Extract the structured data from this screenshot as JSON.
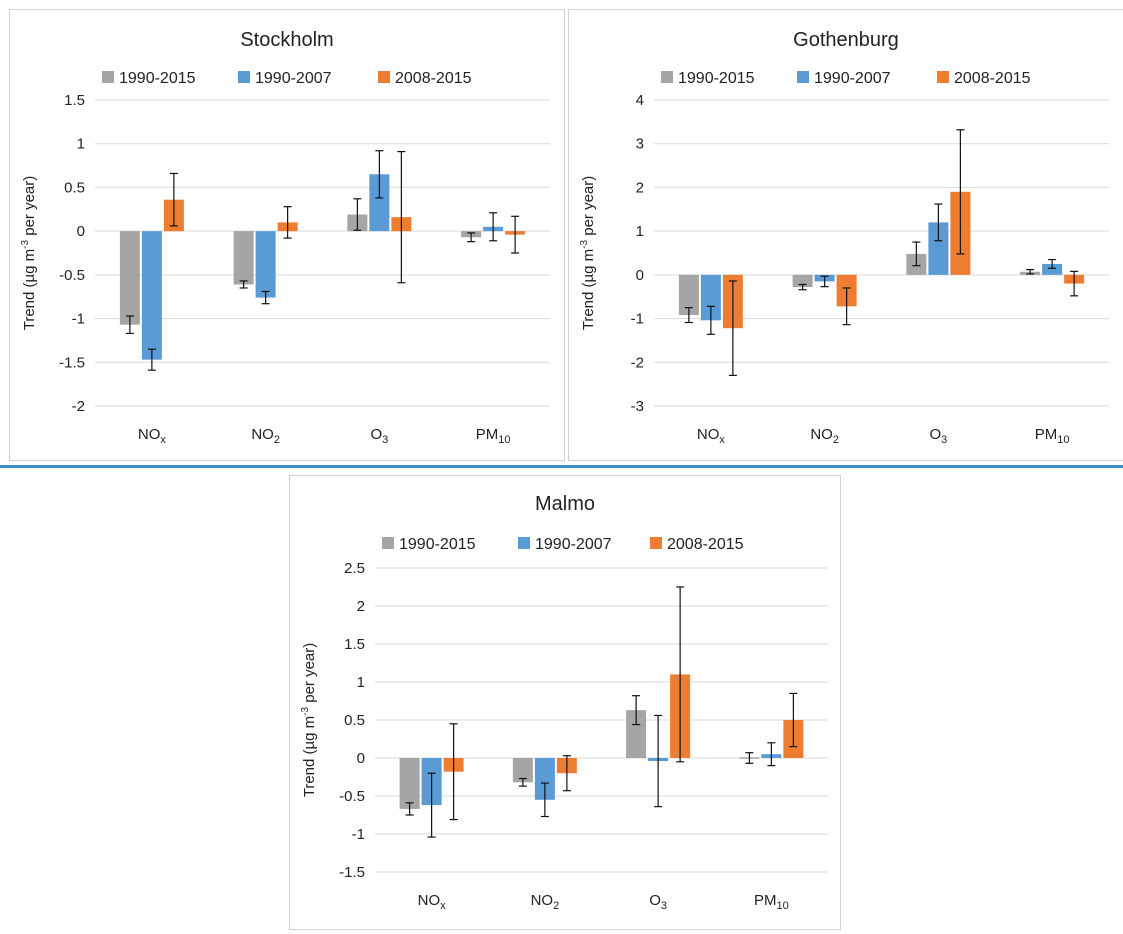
{
  "chart_data": [
    {
      "type": "bar",
      "title": "Stockholm",
      "ylabel_parts": [
        "Trend (µg m",
        "-3",
        " per year)"
      ],
      "categories": [
        [
          "NO",
          "x"
        ],
        [
          "NO",
          "2"
        ],
        [
          "O",
          "3"
        ],
        [
          "PM",
          "10"
        ]
      ],
      "series": [
        {
          "name": "1990-2015",
          "color": "#a5a5a5",
          "values": [
            -1.07,
            -0.61,
            0.19,
            -0.07
          ],
          "err": [
            0.1,
            0.04,
            0.18,
            0.05
          ]
        },
        {
          "name": "1990-2007",
          "color": "#5b9bd5",
          "values": [
            -1.47,
            -0.76,
            0.65,
            0.05
          ],
          "err": [
            0.12,
            0.07,
            0.27,
            0.16
          ]
        },
        {
          "name": "2008-2015",
          "color": "#ed7d31",
          "values": [
            0.36,
            0.1,
            0.16,
            -0.04
          ],
          "err": [
            0.3,
            0.18,
            0.75,
            0.21
          ]
        }
      ],
      "ylim": [
        -2,
        1.5
      ],
      "yticks": [
        1.5,
        1,
        0.5,
        0,
        -0.5,
        -1,
        -1.5,
        -2
      ],
      "yticklabels": [
        "1.5",
        "1",
        "0.5",
        "0",
        "-0.5",
        "-1",
        "-1.5",
        "-2"
      ],
      "grid": true,
      "legend_position": "top"
    },
    {
      "type": "bar",
      "title": "Gothenburg",
      "ylabel_parts": [
        "Trend (µg m",
        "-3",
        " per year)"
      ],
      "categories": [
        [
          "NO",
          "x"
        ],
        [
          "NO",
          "2"
        ],
        [
          "O",
          "3"
        ],
        [
          "PM",
          "10"
        ]
      ],
      "series": [
        {
          "name": "1990-2015",
          "color": "#a5a5a5",
          "values": [
            -0.92,
            -0.28,
            0.48,
            0.07
          ],
          "err": [
            0.17,
            0.06,
            0.27,
            0.05
          ]
        },
        {
          "name": "1990-2007",
          "color": "#5b9bd5",
          "values": [
            -1.04,
            -0.15,
            1.2,
            0.25
          ],
          "err": [
            0.32,
            0.12,
            0.42,
            0.1
          ]
        },
        {
          "name": "2008-2015",
          "color": "#ed7d31",
          "values": [
            -1.22,
            -0.72,
            1.9,
            -0.2
          ],
          "err": [
            1.08,
            0.42,
            1.42,
            0.28
          ]
        }
      ],
      "ylim": [
        -3,
        4
      ],
      "yticks": [
        4,
        3,
        2,
        1,
        0,
        -1,
        -2,
        -3
      ],
      "yticklabels": [
        "4",
        "3",
        "2",
        "1",
        "0",
        "-1",
        "-2",
        "-3"
      ],
      "grid": true,
      "legend_position": "top"
    },
    {
      "type": "bar",
      "title": "Malmo",
      "ylabel_parts": [
        "Trend (µg m",
        "-3",
        " per year)"
      ],
      "categories": [
        [
          "NO",
          "x"
        ],
        [
          "NO",
          "2"
        ],
        [
          "O",
          "3"
        ],
        [
          "PM",
          "10"
        ]
      ],
      "series": [
        {
          "name": "1990-2015",
          "color": "#a5a5a5",
          "values": [
            -0.67,
            -0.32,
            0.63,
            0.0
          ],
          "err": [
            0.08,
            0.05,
            0.19,
            0.07
          ]
        },
        {
          "name": "1990-2007",
          "color": "#5b9bd5",
          "values": [
            -0.62,
            -0.55,
            -0.04,
            0.05
          ],
          "err": [
            0.42,
            0.22,
            0.6,
            0.15
          ]
        },
        {
          "name": "2008-2015",
          "color": "#ed7d31",
          "values": [
            -0.18,
            -0.2,
            1.1,
            0.5
          ],
          "err": [
            0.63,
            0.23,
            1.15,
            0.35
          ]
        }
      ],
      "ylim": [
        -1.5,
        2.5
      ],
      "yticks": [
        2.5,
        2,
        1.5,
        1,
        0.5,
        0,
        -0.5,
        -1,
        -1.5
      ],
      "yticklabels": [
        "2.5",
        "2",
        "1.5",
        "1",
        "0.5",
        "0",
        "-0.5",
        "-1",
        "-1.5"
      ],
      "grid": true,
      "legend_position": "top"
    }
  ]
}
